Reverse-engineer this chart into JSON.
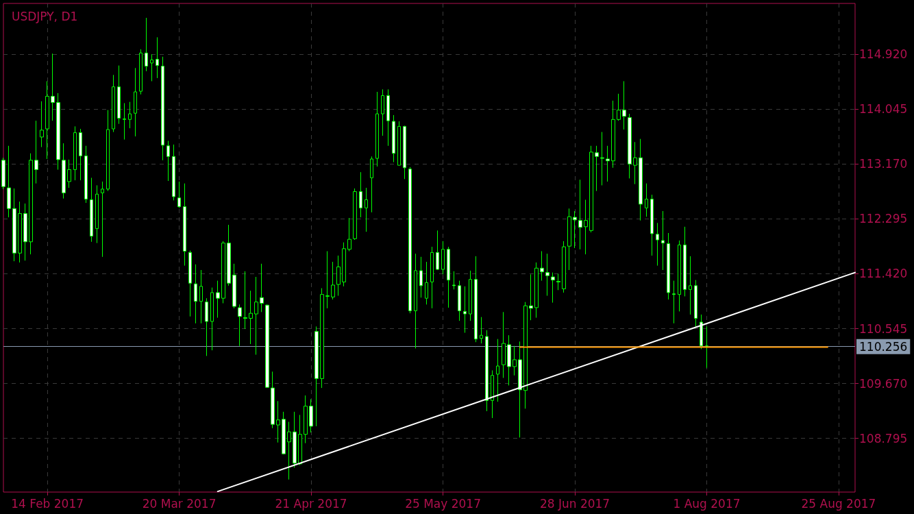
{
  "chart_data": {
    "type": "candlestick",
    "title": "USDJPY, D1",
    "color": "#00ff00",
    "categories": [
      null,
      null,
      null,
      null,
      null,
      null,
      null,
      null,
      "14 Feb 2017",
      null,
      null,
      null,
      null,
      null,
      null,
      null,
      null,
      null,
      null,
      null,
      null,
      null,
      null,
      null,
      null,
      null,
      null,
      null,
      null,
      null,
      null,
      null,
      "20 Mar 2017",
      null,
      null,
      null,
      null,
      null,
      null,
      null,
      null,
      null,
      null,
      null,
      null,
      null,
      null,
      null,
      null,
      null,
      null,
      null,
      null,
      null,
      null,
      null,
      "21 Apr 2017",
      null,
      null,
      null,
      null,
      null,
      null,
      null,
      null,
      null,
      null,
      null,
      null,
      null,
      null,
      null,
      null,
      null,
      null,
      null,
      null,
      null,
      null,
      null,
      "25 May 2017",
      null,
      null,
      null,
      null,
      null,
      null,
      null,
      null,
      null,
      null,
      null,
      null,
      null,
      null,
      null,
      null,
      null,
      null,
      null,
      null,
      null,
      null,
      null,
      "28 Jun 2017",
      null,
      null,
      null,
      null,
      null,
      null,
      null,
      null,
      null,
      null,
      null,
      null,
      null,
      null,
      null,
      null,
      null,
      null,
      null,
      null,
      null,
      null,
      null,
      "1 Aug 2017",
      null,
      null,
      null,
      null,
      null,
      null,
      null,
      null,
      null,
      null,
      null,
      null,
      null,
      null,
      null,
      null,
      null,
      null,
      null,
      null,
      null,
      null,
      null,
      "25 Aug 2017",
      null,
      null,
      null
    ],
    "ohlc": [
      [
        113.23,
        113.27,
        112.77,
        112.81
      ],
      [
        112.79,
        113.46,
        112.32,
        112.46
      ],
      [
        112.46,
        112.78,
        111.62,
        111.75
      ],
      [
        111.75,
        112.57,
        111.6,
        112.38
      ],
      [
        112.38,
        112.54,
        111.63,
        111.93
      ],
      [
        111.93,
        113.34,
        111.73,
        113.23
      ],
      [
        113.23,
        113.86,
        112.86,
        113.08
      ],
      [
        113.6,
        114.17,
        113.44,
        113.71
      ],
      [
        113.73,
        114.49,
        113.25,
        114.25
      ],
      [
        114.25,
        114.93,
        113.86,
        114.15
      ],
      [
        114.15,
        114.3,
        113.08,
        113.24
      ],
      [
        113.23,
        113.5,
        112.62,
        112.71
      ],
      [
        112.89,
        113.24,
        112.79,
        113.08
      ],
      [
        113.08,
        113.77,
        112.91,
        113.67
      ],
      [
        113.67,
        113.73,
        112.91,
        113.3
      ],
      [
        113.3,
        113.46,
        112.55,
        112.61
      ],
      [
        112.6,
        112.95,
        111.93,
        112.02
      ],
      [
        112.14,
        112.83,
        111.91,
        112.69
      ],
      [
        112.71,
        112.89,
        111.69,
        112.77
      ],
      [
        112.77,
        114.03,
        112.74,
        113.72
      ],
      [
        113.73,
        114.59,
        113.68,
        114.4
      ],
      [
        114.4,
        114.74,
        113.81,
        113.9
      ],
      [
        113.88,
        114.14,
        113.56,
        113.89
      ],
      [
        113.88,
        114.16,
        113.74,
        113.97
      ],
      [
        113.98,
        114.7,
        113.61,
        114.32
      ],
      [
        114.33,
        115.0,
        114.28,
        114.94
      ],
      [
        114.94,
        115.5,
        114.65,
        114.73
      ],
      [
        114.78,
        114.92,
        114.49,
        114.83
      ],
      [
        114.84,
        115.19,
        114.54,
        114.74
      ],
      [
        114.73,
        114.88,
        113.23,
        113.47
      ],
      [
        113.46,
        113.54,
        112.9,
        113.29
      ],
      [
        113.29,
        113.48,
        112.59,
        112.65
      ],
      [
        112.63,
        112.89,
        112.47,
        112.49
      ],
      [
        112.49,
        112.86,
        111.55,
        111.78
      ],
      [
        111.76,
        111.79,
        110.74,
        111.27
      ],
      [
        111.26,
        111.57,
        110.63,
        110.98
      ],
      [
        110.98,
        111.48,
        110.63,
        111.22
      ],
      [
        110.97,
        111.03,
        110.11,
        110.66
      ],
      [
        110.66,
        111.2,
        110.2,
        111.12
      ],
      [
        111.12,
        111.31,
        110.72,
        111.03
      ],
      [
        111.03,
        111.94,
        110.95,
        111.91
      ],
      [
        111.91,
        112.2,
        111.23,
        111.27
      ],
      [
        111.4,
        111.58,
        110.87,
        110.9
      ],
      [
        110.88,
        110.93,
        110.27,
        110.74
      ],
      [
        110.72,
        111.46,
        110.54,
        110.71
      ],
      [
        110.71,
        111.15,
        110.3,
        110.79
      ],
      [
        110.78,
        111.37,
        110.13,
        110.97
      ],
      [
        111.04,
        111.58,
        110.81,
        110.95
      ],
      [
        110.92,
        110.93,
        109.6,
        109.61
      ],
      [
        109.6,
        109.86,
        108.96,
        109.02
      ],
      [
        109.01,
        109.39,
        108.73,
        109.09
      ],
      [
        109.1,
        109.22,
        108.54,
        108.55
      ],
      [
        108.74,
        109.06,
        108.14,
        108.9
      ],
      [
        108.9,
        109.22,
        108.33,
        108.4
      ],
      [
        108.39,
        109.17,
        108.37,
        108.86
      ],
      [
        108.86,
        109.48,
        108.72,
        109.31
      ],
      [
        109.31,
        109.42,
        108.89,
        108.99
      ],
      [
        110.5,
        110.58,
        108.99,
        109.75
      ],
      [
        109.75,
        111.19,
        109.6,
        111.09
      ],
      [
        111.06,
        111.78,
        110.87,
        111.07
      ],
      [
        111.05,
        111.61,
        111.01,
        111.24
      ],
      [
        111.25,
        111.71,
        111.07,
        111.53
      ],
      [
        111.29,
        111.92,
        111.22,
        111.82
      ],
      [
        111.81,
        112.31,
        111.78,
        111.97
      ],
      [
        111.98,
        112.78,
        111.96,
        112.73
      ],
      [
        112.73,
        113.04,
        112.32,
        112.47
      ],
      [
        112.47,
        112.79,
        112.09,
        112.6
      ],
      [
        112.95,
        113.29,
        112.4,
        113.25
      ],
      [
        113.26,
        114.32,
        113.13,
        113.97
      ],
      [
        113.97,
        114.36,
        113.62,
        114.26
      ],
      [
        114.26,
        114.36,
        113.46,
        113.86
      ],
      [
        113.85,
        113.95,
        113.2,
        113.34
      ],
      [
        113.15,
        113.85,
        113.15,
        113.77
      ],
      [
        113.77,
        113.78,
        112.93,
        113.11
      ],
      [
        113.09,
        113.12,
        110.79,
        110.83
      ],
      [
        110.83,
        111.74,
        110.23,
        111.47
      ],
      [
        111.47,
        111.69,
        111.04,
        111.23
      ],
      [
        111.03,
        111.61,
        110.93,
        111.28
      ],
      [
        111.29,
        111.85,
        110.87,
        111.76
      ],
      [
        111.76,
        112.11,
        111.48,
        111.49
      ],
      [
        111.49,
        111.94,
        111.41,
        111.81
      ],
      [
        111.81,
        111.85,
        110.88,
        111.32
      ],
      [
        111.24,
        111.46,
        111.17,
        111.23
      ],
      [
        111.23,
        111.31,
        110.67,
        110.83
      ],
      [
        110.82,
        111.22,
        110.48,
        110.78
      ],
      [
        110.78,
        111.47,
        110.67,
        111.33
      ],
      [
        111.33,
        111.7,
        110.33,
        110.38
      ],
      [
        110.39,
        110.73,
        110.31,
        110.44
      ],
      [
        110.42,
        110.52,
        109.23,
        109.4
      ],
      [
        109.4,
        109.88,
        109.12,
        109.8
      ],
      [
        109.82,
        110.38,
        109.38,
        109.95
      ],
      [
        109.97,
        110.81,
        109.76,
        110.31
      ],
      [
        110.29,
        110.44,
        109.64,
        109.94
      ],
      [
        109.94,
        110.27,
        109.8,
        110.05
      ],
      [
        110.05,
        110.34,
        108.81,
        109.57
      ],
      [
        109.56,
        110.97,
        109.27,
        110.91
      ],
      [
        110.91,
        111.41,
        110.68,
        110.87
      ],
      [
        110.88,
        111.6,
        110.72,
        111.51
      ],
      [
        111.51,
        111.78,
        111.31,
        111.45
      ],
      [
        111.44,
        111.74,
        111.07,
        111.39
      ],
      [
        111.37,
        111.44,
        110.96,
        111.32
      ],
      [
        111.3,
        111.42,
        111.16,
        111.29
      ],
      [
        111.18,
        111.94,
        111.12,
        111.85
      ],
      [
        111.86,
        112.46,
        111.48,
        112.33
      ],
      [
        112.32,
        112.42,
        111.83,
        112.28
      ],
      [
        112.27,
        112.92,
        111.81,
        112.16
      ],
      [
        112.17,
        112.6,
        111.73,
        112.27
      ],
      [
        112.11,
        113.46,
        112.08,
        113.36
      ],
      [
        113.35,
        113.46,
        112.74,
        113.29
      ],
      [
        113.27,
        113.68,
        112.83,
        113.26
      ],
      [
        113.25,
        113.46,
        112.89,
        113.22
      ],
      [
        113.22,
        114.18,
        113.11,
        113.88
      ],
      [
        113.88,
        114.29,
        113.86,
        114.03
      ],
      [
        114.03,
        114.49,
        113.72,
        113.93
      ],
      [
        113.91,
        113.97,
        112.94,
        113.17
      ],
      [
        113.15,
        113.52,
        112.85,
        113.27
      ],
      [
        113.27,
        113.57,
        112.27,
        112.53
      ],
      [
        112.47,
        112.86,
        112.33,
        112.61
      ],
      [
        112.61,
        112.68,
        111.71,
        112.06
      ],
      [
        112.05,
        112.23,
        111.55,
        111.96
      ],
      [
        111.95,
        112.42,
        111.48,
        111.91
      ],
      [
        111.9,
        112.07,
        111.01,
        111.12
      ],
      [
        111.1,
        111.31,
        110.63,
        111.09
      ],
      [
        111.09,
        111.95,
        110.82,
        111.88
      ],
      [
        111.88,
        112.17,
        111.06,
        111.17
      ],
      [
        111.17,
        111.7,
        110.77,
        111.23
      ],
      [
        111.23,
        111.32,
        110.57,
        110.71
      ],
      [
        110.65,
        110.77,
        110.22,
        110.27
      ],
      [
        110.27,
        110.58,
        109.92,
        110.256
      ],
      null,
      null,
      null,
      null,
      null,
      null,
      null,
      null,
      null,
      null,
      null,
      null,
      null,
      null,
      null,
      null,
      null,
      null,
      null,
      null,
      null,
      null,
      null,
      null,
      null,
      null,
      null
    ],
    "series": [
      {
        "type": "line",
        "color": "#ffffff",
        "values": [
          null,
          null,
          null,
          null,
          null,
          null,
          null,
          null,
          null,
          null,
          null,
          null,
          null,
          null,
          null,
          null,
          null,
          null,
          null,
          null,
          null,
          null,
          null,
          null,
          null,
          null,
          null,
          null,
          null,
          null,
          null,
          null,
          null,
          null,
          null,
          null,
          null,
          null,
          null,
          107.95,
          null,
          null,
          null,
          null,
          null,
          null,
          null,
          null,
          null,
          null,
          null,
          null,
          null,
          null,
          null,
          null,
          null,
          null,
          null,
          null,
          null,
          null,
          null,
          null,
          null,
          null,
          null,
          null,
          null,
          null,
          null,
          null,
          null,
          null,
          null,
          null,
          null,
          null,
          null,
          null,
          null,
          null,
          null,
          null,
          null,
          null,
          null,
          null,
          null,
          null,
          null,
          null,
          null,
          null,
          null,
          null,
          null,
          null,
          null,
          null,
          null,
          null,
          null,
          null,
          null,
          null,
          null,
          null,
          null,
          null,
          null,
          null,
          null,
          null,
          null,
          null,
          null,
          null,
          null,
          null,
          null,
          null,
          null,
          null,
          null,
          null,
          null,
          null,
          null,
          null,
          null,
          null,
          null,
          null,
          null,
          null,
          null,
          null,
          null,
          null,
          null,
          null,
          null,
          null,
          null,
          null,
          null,
          null,
          null,
          null,
          null,
          null,
          null,
          null,
          null,
          111.44
        ]
      },
      {
        "type": "line",
        "color": "#ff9900",
        "values": [
          null,
          null,
          null,
          null,
          null,
          null,
          null,
          null,
          null,
          null,
          null,
          null,
          null,
          null,
          null,
          null,
          null,
          null,
          null,
          null,
          null,
          null,
          null,
          null,
          null,
          null,
          null,
          null,
          null,
          null,
          null,
          null,
          null,
          null,
          null,
          null,
          null,
          null,
          null,
          null,
          null,
          null,
          null,
          null,
          null,
          null,
          null,
          null,
          null,
          null,
          null,
          null,
          null,
          null,
          null,
          null,
          null,
          null,
          null,
          null,
          null,
          null,
          null,
          null,
          null,
          null,
          null,
          null,
          null,
          null,
          null,
          null,
          null,
          null,
          null,
          null,
          null,
          null,
          null,
          null,
          null,
          null,
          null,
          null,
          null,
          null,
          null,
          null,
          null,
          null,
          null,
          null,
          null,
          null,
          110.25,
          null,
          null,
          null,
          null,
          null,
          null,
          null,
          null,
          null,
          null,
          null,
          null,
          null,
          null,
          null,
          null,
          null,
          null,
          null,
          null,
          null,
          null,
          null,
          null,
          null,
          null,
          null,
          null,
          null,
          null,
          null,
          null,
          null,
          null,
          null,
          null,
          null,
          null,
          null,
          null,
          null,
          null,
          null,
          null,
          null,
          null,
          null,
          null,
          null,
          null,
          null,
          null,
          null,
          null,
          null,
          110.25,
          null,
          null,
          null,
          null,
          null
        ]
      }
    ],
    "ylim": [
      107.94,
      115.73
    ],
    "yticks": [
      108.795,
      {
        "value": 109.67,
        "label": "109.670"
      },
      110.545,
      {
        "value": 111.42,
        "label": "111.420"
      },
      112.295,
      {
        "value": 113.17,
        "label": "113.170"
      },
      114.045,
      {
        "value": 114.92,
        "label": "114.920"
      }
    ],
    "ref_lines": [
      {
        "axis": "y",
        "value": 110.256,
        "label": "110.256",
        "color": "#8a9bb0"
      }
    ],
    "grid": true
  }
}
